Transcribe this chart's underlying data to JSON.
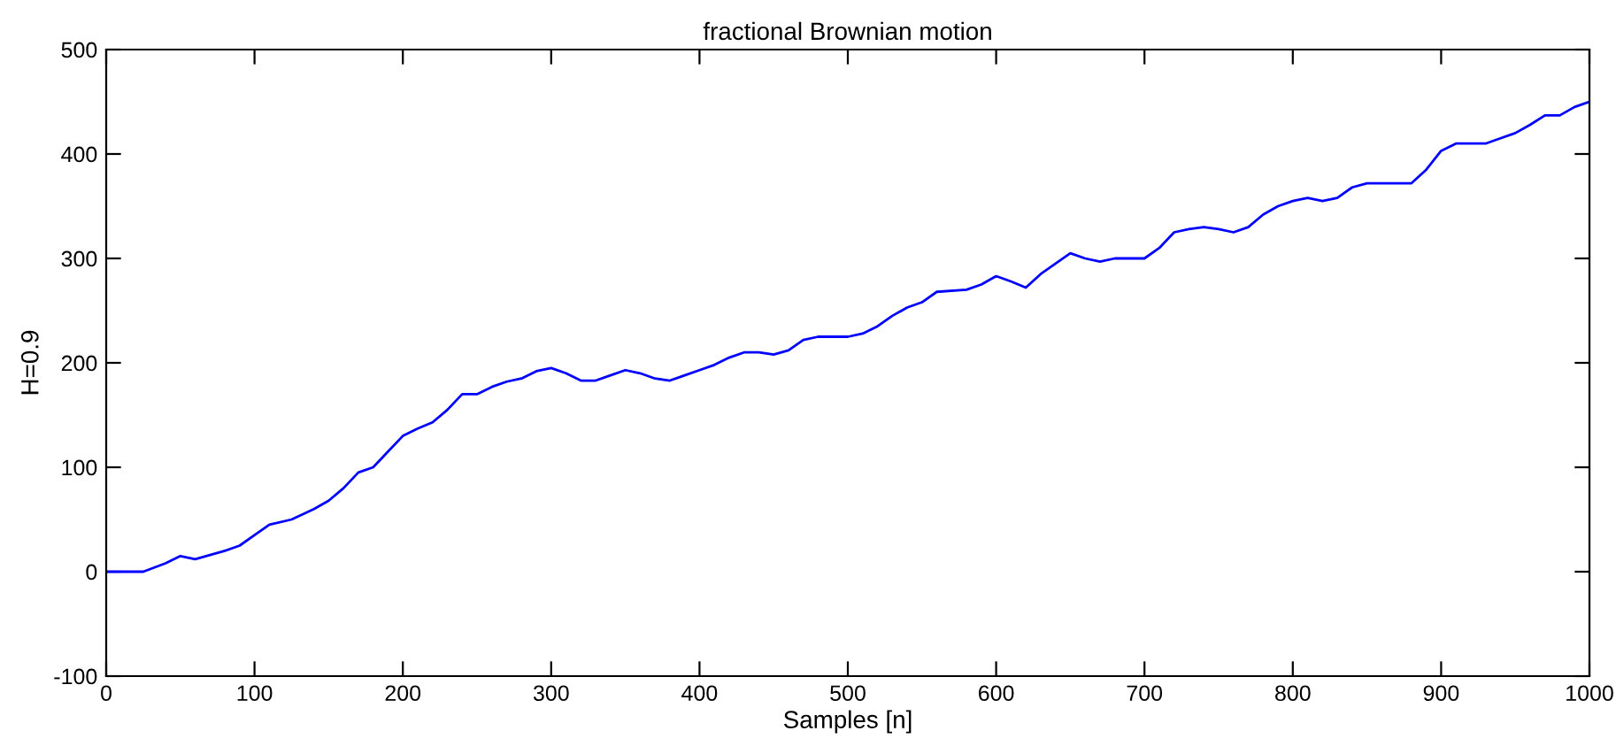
{
  "chart_data": {
    "type": "line",
    "title": "fractional Brownian motion",
    "xlabel": "Samples [n]",
    "ylabel": "H=0.9",
    "x": [
      0,
      25,
      40,
      50,
      60,
      70,
      80,
      90,
      100,
      110,
      125,
      140,
      150,
      160,
      170,
      180,
      190,
      200,
      210,
      220,
      230,
      240,
      250,
      260,
      270,
      280,
      290,
      300,
      310,
      320,
      330,
      340,
      350,
      360,
      370,
      380,
      390,
      400,
      410,
      420,
      430,
      440,
      450,
      460,
      470,
      480,
      500,
      510,
      520,
      530,
      540,
      550,
      560,
      580,
      590,
      600,
      610,
      620,
      630,
      650,
      660,
      670,
      680,
      700,
      710,
      720,
      730,
      740,
      750,
      760,
      770,
      780,
      790,
      800,
      810,
      820,
      830,
      840,
      850,
      860,
      880,
      890,
      900,
      910,
      930,
      940,
      950,
      960,
      970,
      980,
      990,
      1000
    ],
    "series": [
      {
        "color": "#0000ff",
        "values": [
          0,
          0,
          8,
          15,
          12,
          16,
          20,
          25,
          35,
          45,
          50,
          60,
          68,
          80,
          95,
          100,
          115,
          130,
          137,
          143,
          155,
          170,
          170,
          177,
          182,
          185,
          192,
          195,
          190,
          183,
          183,
          188,
          193,
          190,
          185,
          183,
          188,
          193,
          198,
          205,
          210,
          210,
          208,
          212,
          222,
          225,
          225,
          228,
          235,
          245,
          253,
          258,
          268,
          270,
          275,
          283,
          278,
          272,
          285,
          305,
          300,
          297,
          300,
          300,
          310,
          325,
          328,
          330,
          328,
          325,
          330,
          342,
          350,
          355,
          358,
          355,
          358,
          368,
          372,
          372,
          372,
          385,
          403,
          410,
          410,
          415,
          420,
          428,
          437,
          437,
          445,
          450
        ]
      }
    ],
    "xlim": [
      0,
      1000
    ],
    "ylim": [
      -100,
      500
    ],
    "xticks": [
      0,
      100,
      200,
      300,
      400,
      500,
      600,
      700,
      800,
      900,
      1000
    ],
    "yticks": [
      -100,
      0,
      100,
      200,
      300,
      400,
      500
    ],
    "grid": false,
    "legend": false,
    "marker": "none",
    "line_style": "solid"
  }
}
